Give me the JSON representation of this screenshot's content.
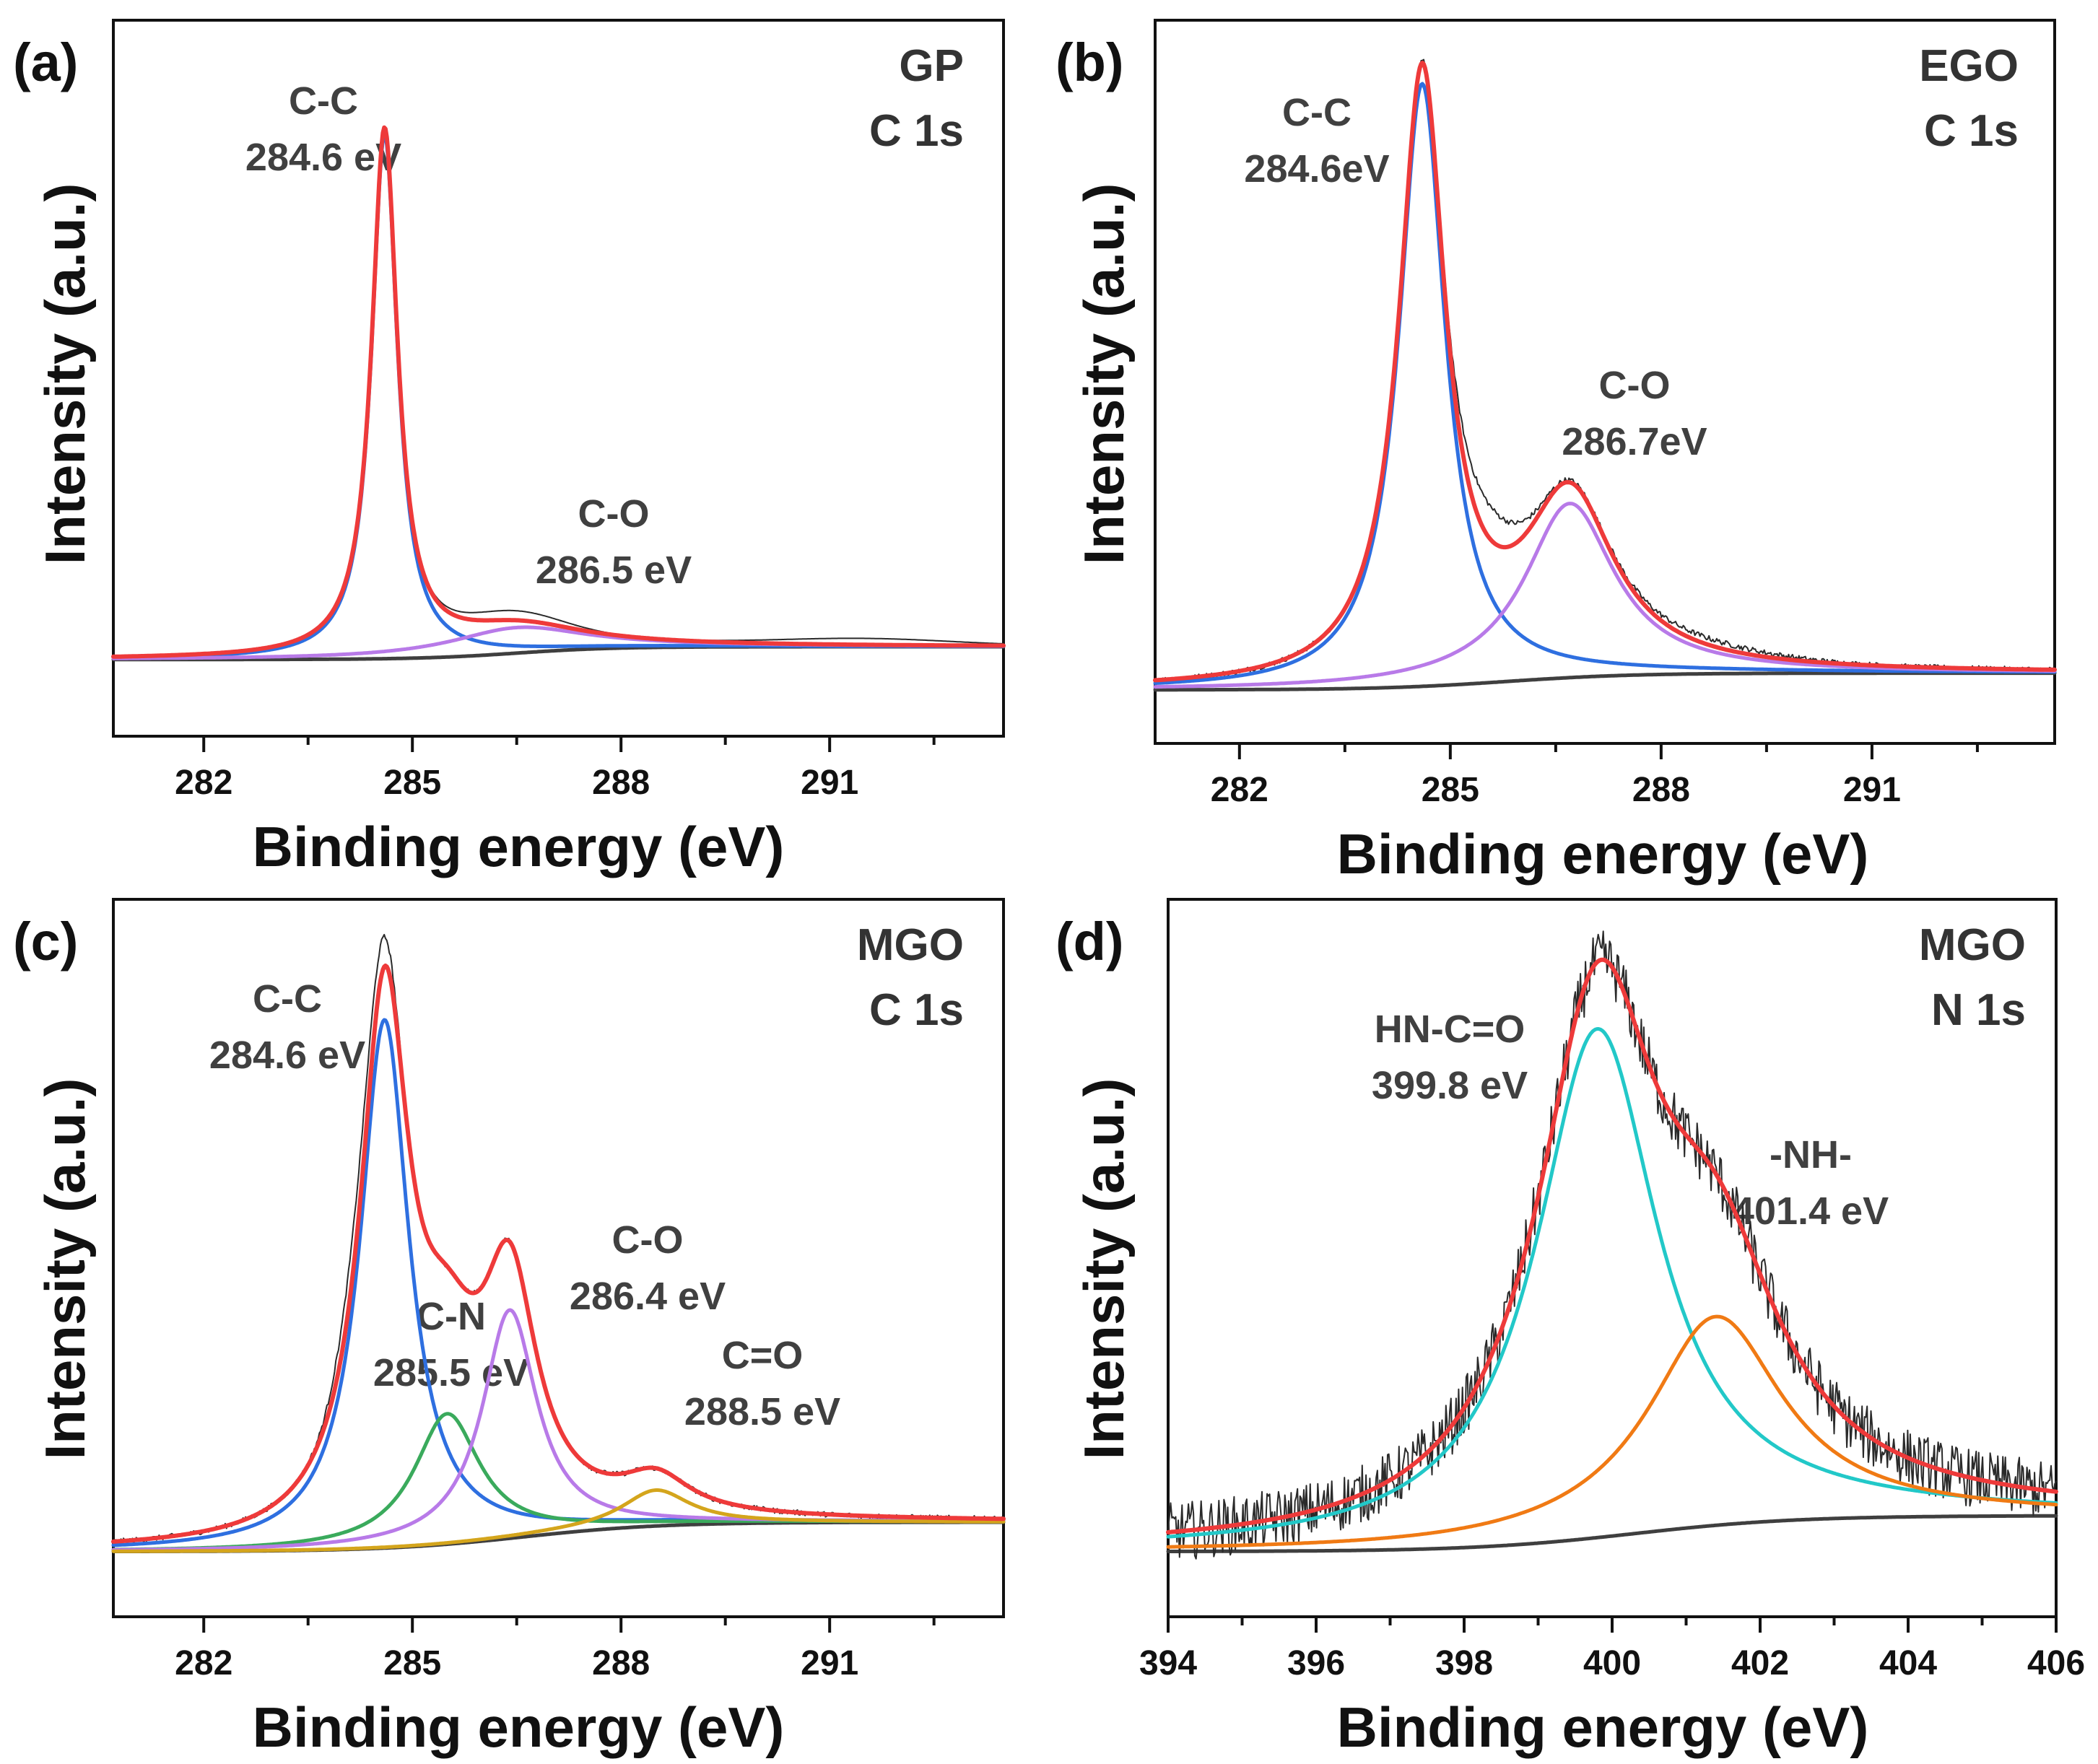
{
  "chart_data": [
    {
      "panel": "(a)",
      "type": "line",
      "sample": "GP",
      "region": "C 1s",
      "xlabel": "Binding energy (eV)",
      "ylabel": "Intensity (a.u.)",
      "xlim": [
        280.7,
        293.5
      ],
      "ylim": [
        -0.12,
        1.0
      ],
      "xticks": [
        282,
        285,
        288,
        291
      ],
      "minor_step": 1.5,
      "background": {
        "type": "shirley",
        "start": 0.0,
        "end": 0.02,
        "center": 286.5,
        "width": 0.7
      },
      "peaks": [
        {
          "name": "C-C",
          "position_label": "284.6 eV",
          "center": 284.6,
          "amplitude": 0.82,
          "fwhm": 0.45,
          "color": "#2e6fe0"
        },
        {
          "name": "C-O",
          "position_label": "286.5 eV",
          "center": 286.5,
          "amplitude": 0.04,
          "fwhm": 2.4,
          "color": "#b87ae8"
        }
      ],
      "raw_data": {
        "shoulder": [
          {
            "center": 286.4,
            "amplitude": 0.015,
            "width": 1.0
          }
        ],
        "tail": [
          {
            "center": 291.5,
            "amplitude": 0.01,
            "width": 1.8
          }
        ],
        "noise": 0.0
      }
    },
    {
      "panel": "(b)",
      "type": "line",
      "sample": "EGO",
      "region": "C 1s",
      "xlabel": "Binding energy (eV)",
      "ylabel": "Intensity (a.u.)",
      "xlim": [
        280.8,
        293.6
      ],
      "ylim": [
        -0.08,
        1.0
      ],
      "xticks": [
        282,
        285,
        288,
        291
      ],
      "minor_step": 1.5,
      "background": {
        "type": "shirley",
        "start": 0.0,
        "end": 0.025,
        "center": 285.8,
        "width": 0.9
      },
      "peaks": [
        {
          "name": "C-C",
          "position_label": "284.6eV",
          "center": 284.6,
          "amplitude": 0.9,
          "fwhm": 0.8,
          "color": "#2e6fe0"
        },
        {
          "name": "C-O",
          "position_label": "286.7eV",
          "center": 286.7,
          "amplitude": 0.26,
          "fwhm": 1.55,
          "color": "#b87ae8"
        }
      ],
      "raw_data": {
        "shoulder": [
          {
            "center": 285.5,
            "amplitude": 0.05,
            "width": 0.6
          },
          {
            "center": 288.5,
            "amplitude": 0.01,
            "width": 1.5
          }
        ],
        "tail": [],
        "noise": 0.004
      }
    },
    {
      "panel": "(c)",
      "type": "line",
      "sample": "MGO",
      "region": "C 1s",
      "xlabel": "Binding energy (eV)",
      "ylabel": "Intensity (a.u.)",
      "xlim": [
        280.7,
        293.5
      ],
      "ylim": [
        -0.1,
        1.0
      ],
      "xticks": [
        282,
        285,
        288,
        291
      ],
      "minor_step": 1.5,
      "background": {
        "type": "shirley",
        "start": 0.0,
        "end": 0.045,
        "center": 286.6,
        "width": 1.0
      },
      "peaks": [
        {
          "name": "C-C",
          "position_label": "284.6 eV",
          "center": 284.6,
          "amplitude": 0.81,
          "fwhm": 0.85,
          "color": "#2e6fe0"
        },
        {
          "name": "C-N",
          "position_label": "285.5 eV",
          "center": 285.5,
          "amplitude": 0.2,
          "fwhm": 1.15,
          "color": "#3aaa5c"
        },
        {
          "name": "C-O",
          "position_label": "286.4 eV",
          "center": 286.4,
          "amplitude": 0.35,
          "fwhm": 0.95,
          "color": "#b87ae8"
        },
        {
          "name": "C=O",
          "position_label": "288.5 eV",
          "center": 288.5,
          "amplitude": 0.055,
          "fwhm": 1.2,
          "color": "#d4a51c"
        }
      ],
      "raw_data": {
        "shoulder": [
          {
            "center": 284.3,
            "amplitude": 0.07,
            "width": 0.45
          }
        ],
        "tail": [],
        "noise": 0.004
      }
    },
    {
      "panel": "(d)",
      "type": "line",
      "sample": "MGO",
      "region": "N 1s",
      "xlabel": "Binding energy (eV)",
      "ylabel": "Intensity (a.u.)",
      "xlim": [
        394,
        406
      ],
      "ylim": [
        -0.1,
        1.0
      ],
      "xticks": [
        394,
        396,
        398,
        400,
        402,
        404,
        406
      ],
      "minor_step": 1,
      "background": {
        "type": "shirley",
        "start": 0.0,
        "end": 0.055,
        "center": 400.3,
        "width": 1.1
      },
      "peaks": [
        {
          "name": "HN-C=O",
          "position_label": "399.8 eV",
          "center": 399.8,
          "amplitude": 0.78,
          "fwhm": 2.0,
          "color": "#22c8c8"
        },
        {
          "name": "-NH-",
          "position_label": "401.4 eV",
          "center": 401.4,
          "amplitude": 0.32,
          "fwhm": 2.2,
          "color": "#f07a14"
        }
      ],
      "raw_data": {
        "shoulder": [],
        "tail": [],
        "noise": 0.045
      }
    }
  ],
  "panels": [
    {
      "letter": "(a)",
      "sample": "GP",
      "region": "C 1s",
      "peak_labels": [
        {
          "name": "C-C",
          "value": "284.6 eV"
        },
        {
          "name": "C-O",
          "value": "286.5 eV"
        }
      ],
      "xlabel": "Binding energy (eV)",
      "ylabel": "Intensity (a.u.)",
      "xtick_labels": [
        "282",
        "285",
        "288",
        "291"
      ]
    },
    {
      "letter": "(b)",
      "sample": "EGO",
      "region": "C 1s",
      "peak_labels": [
        {
          "name": "C-C",
          "value": "284.6eV"
        },
        {
          "name": "C-O",
          "value": "286.7eV"
        }
      ],
      "xlabel": "Binding energy (eV)",
      "ylabel": "Intensity (a.u.)",
      "xtick_labels": [
        "282",
        "285",
        "288",
        "291"
      ]
    },
    {
      "letter": "(c)",
      "sample": "MGO",
      "region": "C 1s",
      "peak_labels": [
        {
          "name": "C-C",
          "value": "284.6 eV"
        },
        {
          "name": "C-N",
          "value": "285.5 eV"
        },
        {
          "name": "C-O",
          "value": "286.4 eV"
        },
        {
          "name": "C=O",
          "value": "288.5 eV"
        }
      ],
      "xlabel": "Binding energy (eV)",
      "ylabel": "Intensity (a.u.)",
      "xtick_labels": [
        "282",
        "285",
        "288",
        "291"
      ]
    },
    {
      "letter": "(d)",
      "sample": "MGO",
      "region": "N 1s",
      "peak_labels": [
        {
          "name": "HN-C=O",
          "value": "399.8 eV"
        },
        {
          "name": "-NH-",
          "value": "401.4 eV"
        }
      ],
      "xlabel": "Binding energy (eV)",
      "ylabel": "Intensity (a.u.)",
      "xtick_labels": [
        "394",
        "396",
        "398",
        "400",
        "402",
        "404",
        "406"
      ]
    }
  ],
  "colors": {
    "raw": "#2a2a2a",
    "envelope": "#ee3a3a",
    "background": "#3f3f3f",
    "axis": "#111111"
  }
}
